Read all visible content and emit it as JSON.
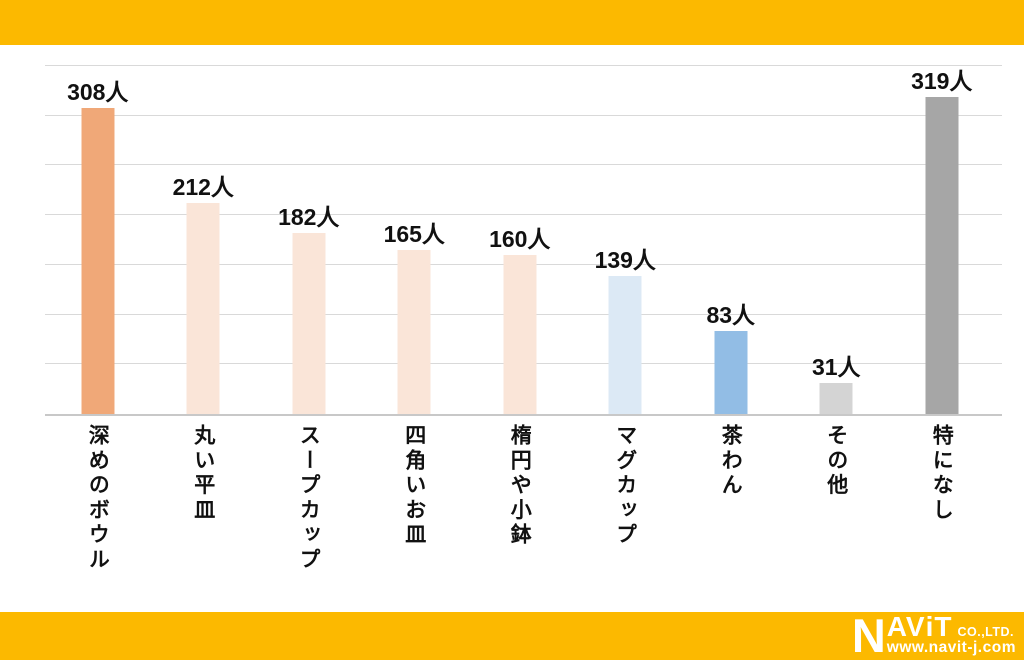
{
  "page": {
    "background": "#FFFFFF",
    "band_color": "#FCB900"
  },
  "chart_data": {
    "type": "bar",
    "title": "",
    "xlabel": "",
    "ylabel": "",
    "unit": "人",
    "categories": [
      "深めのボウル",
      "丸い平皿",
      "スープカップ",
      "四角いお皿",
      "楕円や小鉢",
      "マグカップ",
      "茶わん",
      "その他",
      "特になし"
    ],
    "values": [
      308,
      212,
      182,
      165,
      160,
      139,
      83,
      31,
      319
    ],
    "value_labels": [
      "308人",
      "212人",
      "182人",
      "165人",
      "160人",
      "139人",
      "83人",
      "31人",
      "319人"
    ],
    "bar_colors": [
      "#F0A878",
      "#FAE5D8",
      "#FAE5D8",
      "#FAE5D8",
      "#FAE5D8",
      "#DCE9F5",
      "#92BDE5",
      "#D4D4D4",
      "#A6A6A6"
    ],
    "ylim": [
      0,
      350
    ],
    "gridline_step": 50,
    "grid": "horizontal",
    "legend": "none",
    "gridline_color": "#D9D9D9",
    "axis_color": "#C8C8C8",
    "label_color": "#111111"
  },
  "logo": {
    "n": "N",
    "av": "AV",
    "i": "i",
    "t": "T",
    "co": "CO.,LTD.",
    "url": "www.navit-j.com"
  }
}
